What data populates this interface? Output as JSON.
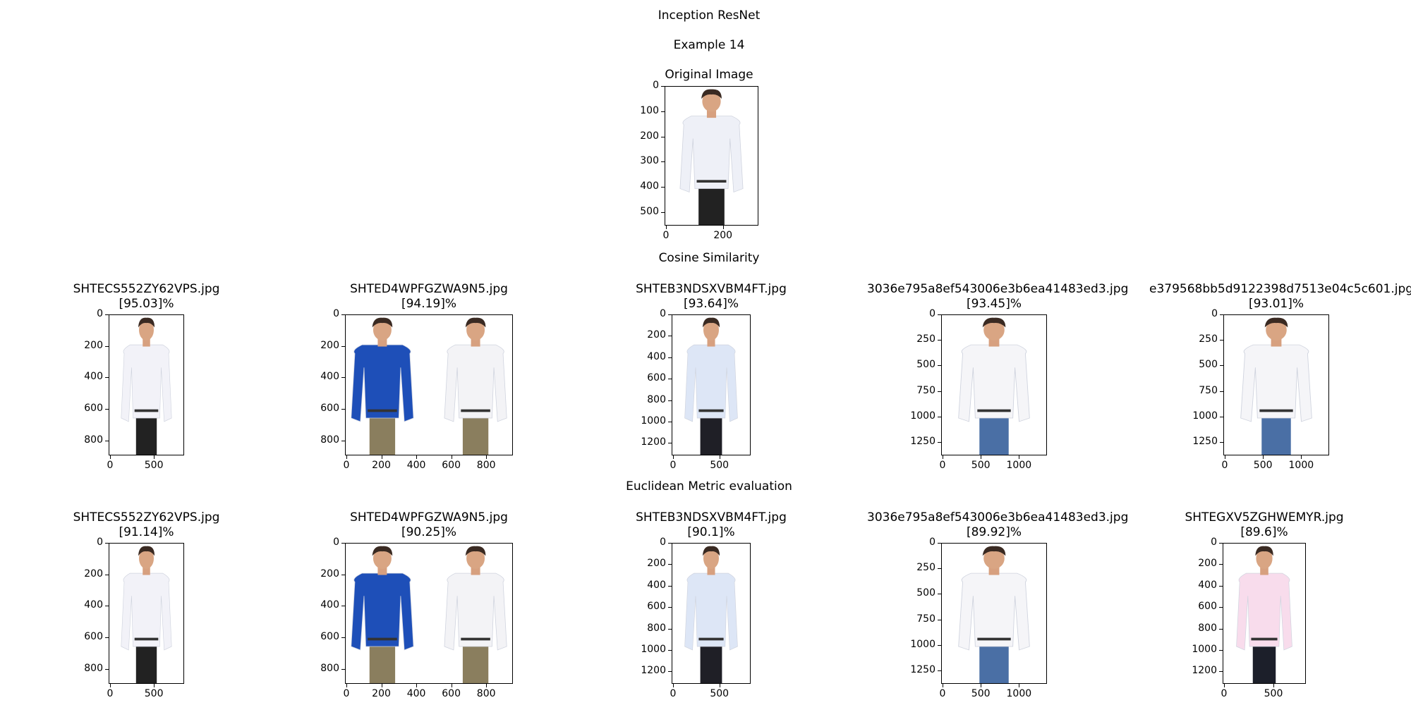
{
  "figure": {
    "title": "Inception ResNet",
    "subtitle": "Example 14",
    "original_label": "Original Image",
    "cosine_label": "Cosine Similarity",
    "euclid_label": "Euclidean Metric evaluation"
  },
  "original": {
    "yticks": [
      "0",
      "100",
      "200",
      "300",
      "400",
      "500"
    ],
    "xticks": [
      "0",
      "200"
    ],
    "shirt_color": "#eef0f7"
  },
  "cosine": [
    {
      "filename": "SHTECS552ZY62VPS.jpg",
      "score": "[95.03]%",
      "yticks": [
        "0",
        "200",
        "400",
        "600",
        "800"
      ],
      "xticks": [
        "0",
        "500"
      ],
      "shirt": "#f2f2f8",
      "pants": "#222222"
    },
    {
      "filename": "SHTED4WPFGZWA9N5.jpg",
      "score": "[94.19]%",
      "yticks": [
        "0",
        "200",
        "400",
        "600",
        "800"
      ],
      "xticks": [
        "0",
        "200",
        "400",
        "600",
        "800"
      ],
      "shirt": "#1e4fb8",
      "shirt2": "#f3f3f6",
      "pants": "#8a7e5e"
    },
    {
      "filename": "SHTEB3NDSXVBM4FT.jpg",
      "score": "[93.64]%",
      "yticks": [
        "0",
        "200",
        "400",
        "600",
        "800",
        "1000",
        "1200"
      ],
      "xticks": [
        "0",
        "500"
      ],
      "shirt": "#dde6f6",
      "pants": "#1f1f26"
    },
    {
      "filename": "3036e795a8ef543006e3b6ea41483ed3.jpg",
      "score": "[93.45]%",
      "yticks": [
        "0",
        "250",
        "500",
        "750",
        "1000",
        "1250"
      ],
      "xticks": [
        "0",
        "500",
        "1000"
      ],
      "shirt": "#f5f5f8",
      "pants": "#4a6fa5"
    },
    {
      "filename": "e379568bb5d9122398d7513e04c5c601.jpg",
      "score": "[93.01]%",
      "yticks": [
        "0",
        "250",
        "500",
        "750",
        "1000",
        "1250"
      ],
      "xticks": [
        "0",
        "500",
        "1000"
      ],
      "shirt": "#f5f5f8",
      "pants": "#4a6fa5"
    }
  ],
  "euclid": [
    {
      "filename": "SHTECS552ZY62VPS.jpg",
      "score": "[91.14]%",
      "yticks": [
        "0",
        "200",
        "400",
        "600",
        "800"
      ],
      "xticks": [
        "0",
        "500"
      ],
      "shirt": "#f2f2f8",
      "pants": "#222222"
    },
    {
      "filename": "SHTED4WPFGZWA9N5.jpg",
      "score": "[90.25]%",
      "yticks": [
        "0",
        "200",
        "400",
        "600",
        "800"
      ],
      "xticks": [
        "0",
        "200",
        "400",
        "600",
        "800"
      ],
      "shirt": "#1e4fb8",
      "shirt2": "#f3f3f6",
      "pants": "#8a7e5e"
    },
    {
      "filename": "SHTEB3NDSXVBM4FT.jpg",
      "score": "[90.1]%",
      "yticks": [
        "0",
        "200",
        "400",
        "600",
        "800",
        "1000",
        "1200"
      ],
      "xticks": [
        "0",
        "500"
      ],
      "shirt": "#dde6f6",
      "pants": "#1f1f26"
    },
    {
      "filename": "3036e795a8ef543006e3b6ea41483ed3.jpg",
      "score": "[89.92]%",
      "yticks": [
        "0",
        "250",
        "500",
        "750",
        "1000",
        "1250"
      ],
      "xticks": [
        "0",
        "500",
        "1000"
      ],
      "shirt": "#f5f5f8",
      "pants": "#4a6fa5"
    },
    {
      "filename": "SHTEGXV5ZGHWEMYR.jpg",
      "score": "[89.6]%",
      "yticks": [
        "0",
        "200",
        "400",
        "600",
        "800",
        "1000",
        "1200"
      ],
      "xticks": [
        "0",
        "500"
      ],
      "shirt": "#f8dcec",
      "pants": "#1c1f2a"
    }
  ]
}
